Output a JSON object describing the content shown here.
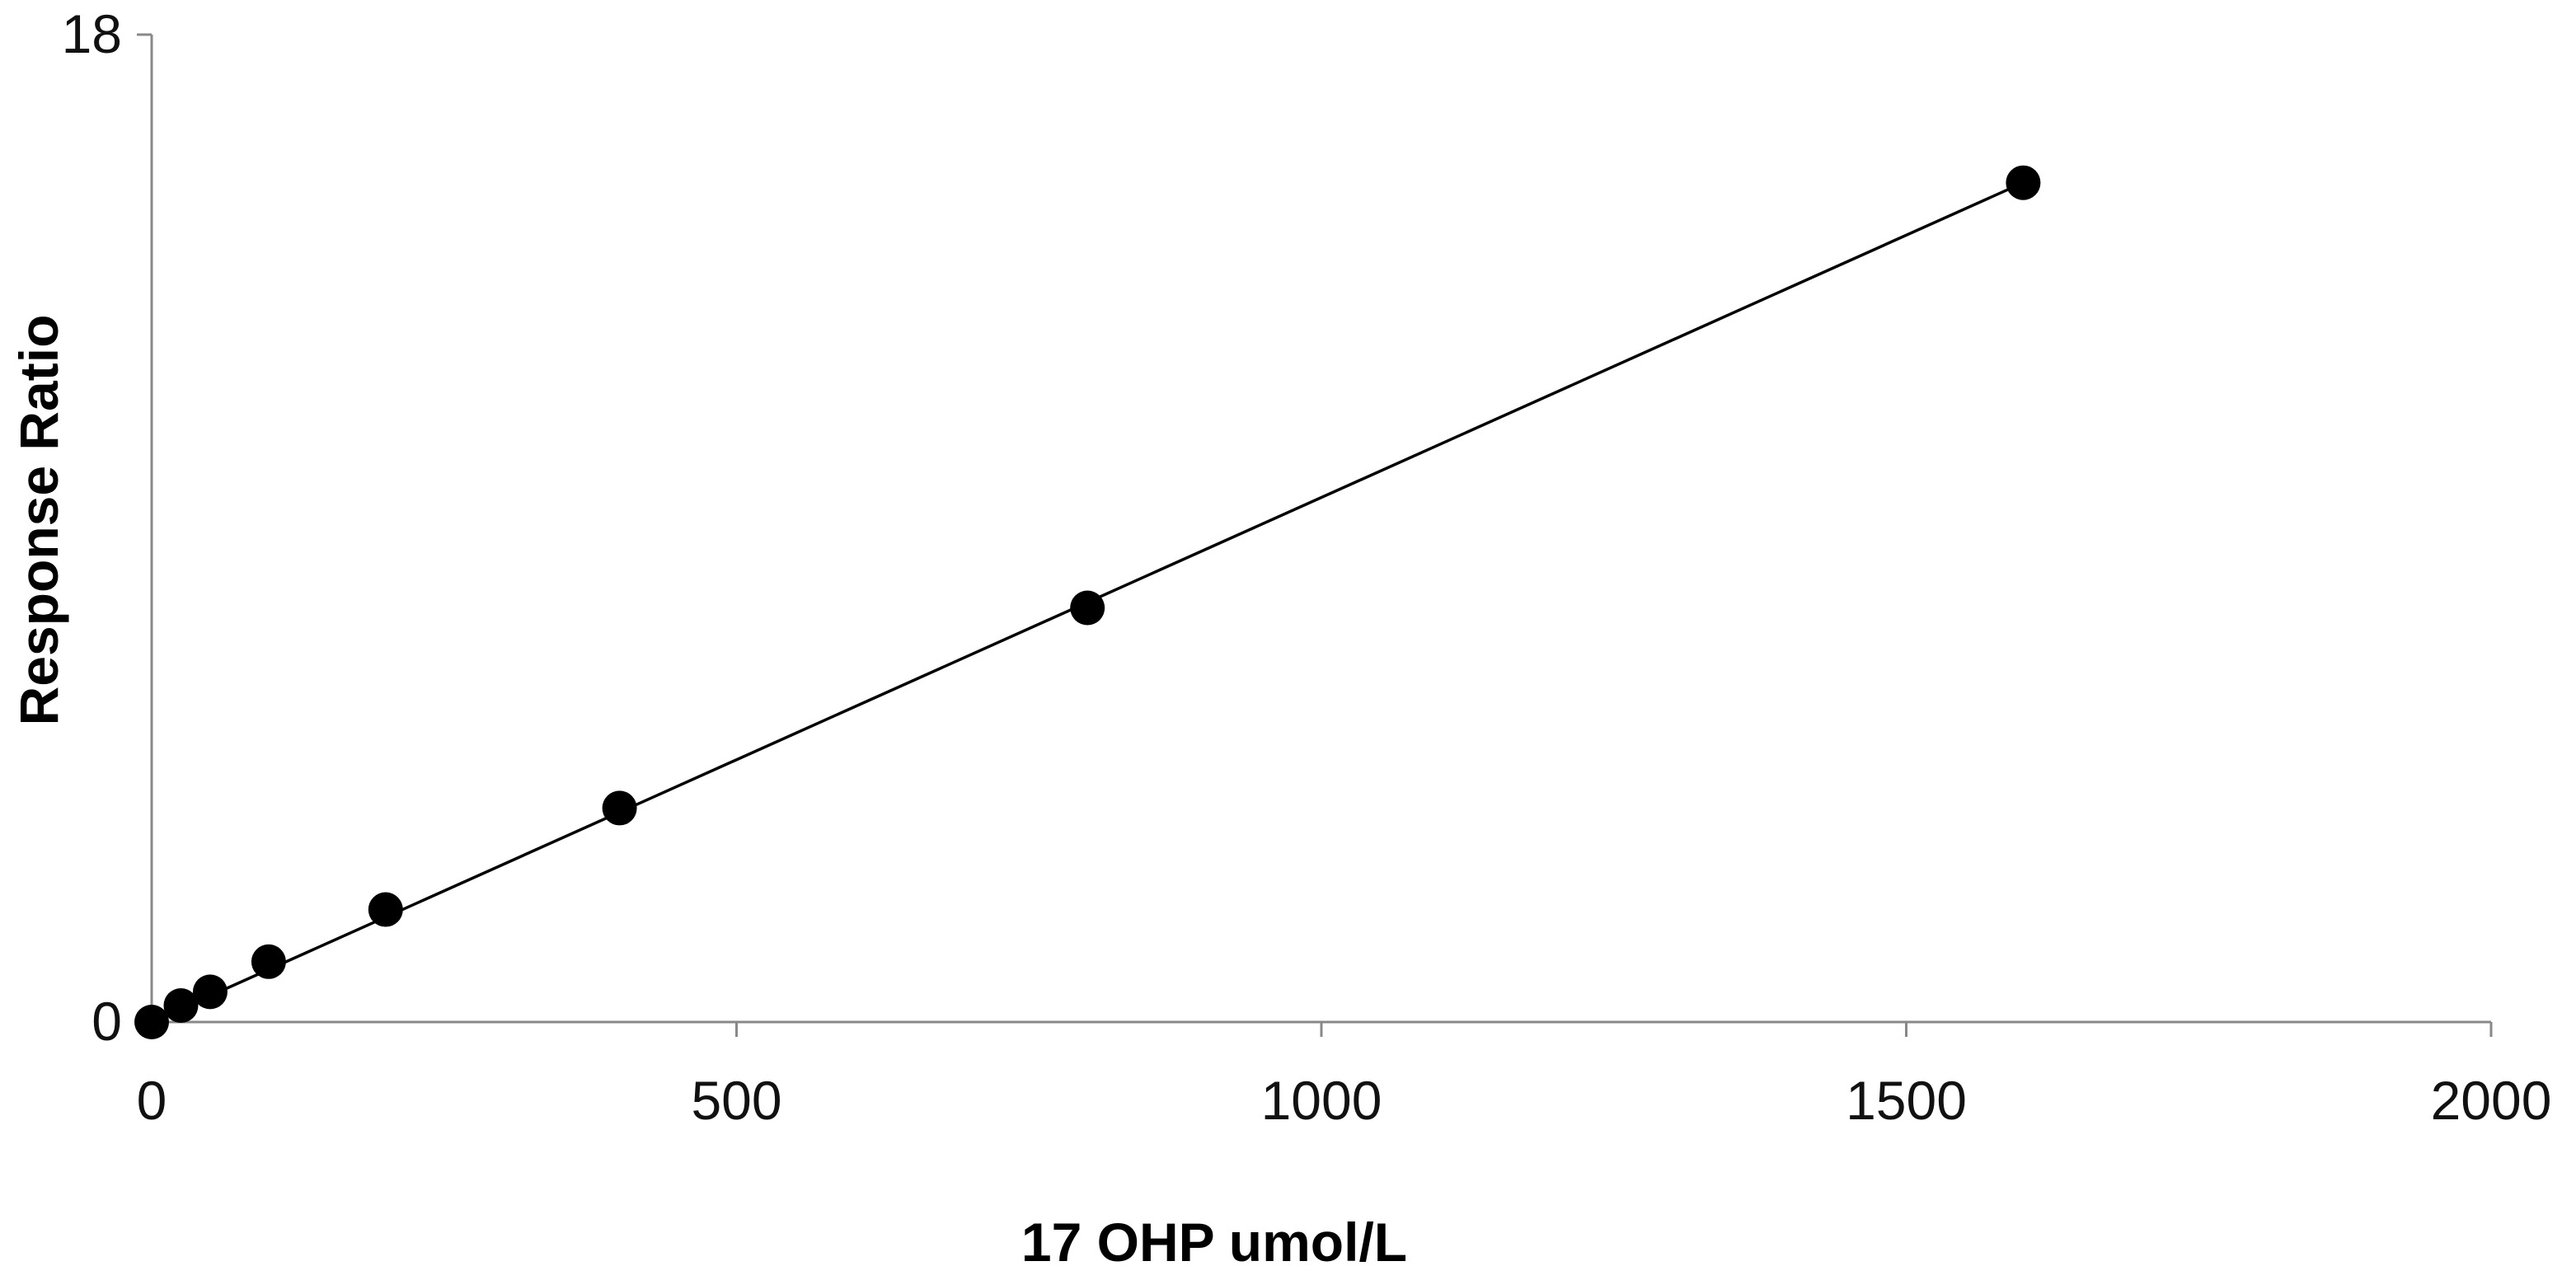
{
  "chart_data": {
    "type": "scatter",
    "title": "",
    "xlabel": "17 OHP  umol/L",
    "ylabel": "Response Ratio",
    "xlim": [
      0,
      2000
    ],
    "ylim": [
      0,
      18
    ],
    "x_ticks": [
      "0",
      "500",
      "1000",
      "1500",
      "2000"
    ],
    "y_ticks": [
      "0",
      "18"
    ],
    "x_tick_values": [
      0,
      500,
      1000,
      1500,
      2000
    ],
    "y_tick_values": [
      0,
      18
    ],
    "grid": false,
    "legend": "none",
    "marker_color": "#000000",
    "line_color": "#000000",
    "series": [
      {
        "x": [
          0,
          25,
          50,
          100,
          200,
          400,
          800,
          1600
        ],
        "y": [
          0,
          0.3,
          0.55,
          1.1,
          2.05,
          3.9,
          7.55,
          15.3
        ]
      }
    ],
    "trendline": {
      "x": [
        0,
        1600
      ],
      "y": [
        0,
        15.3
      ]
    }
  }
}
